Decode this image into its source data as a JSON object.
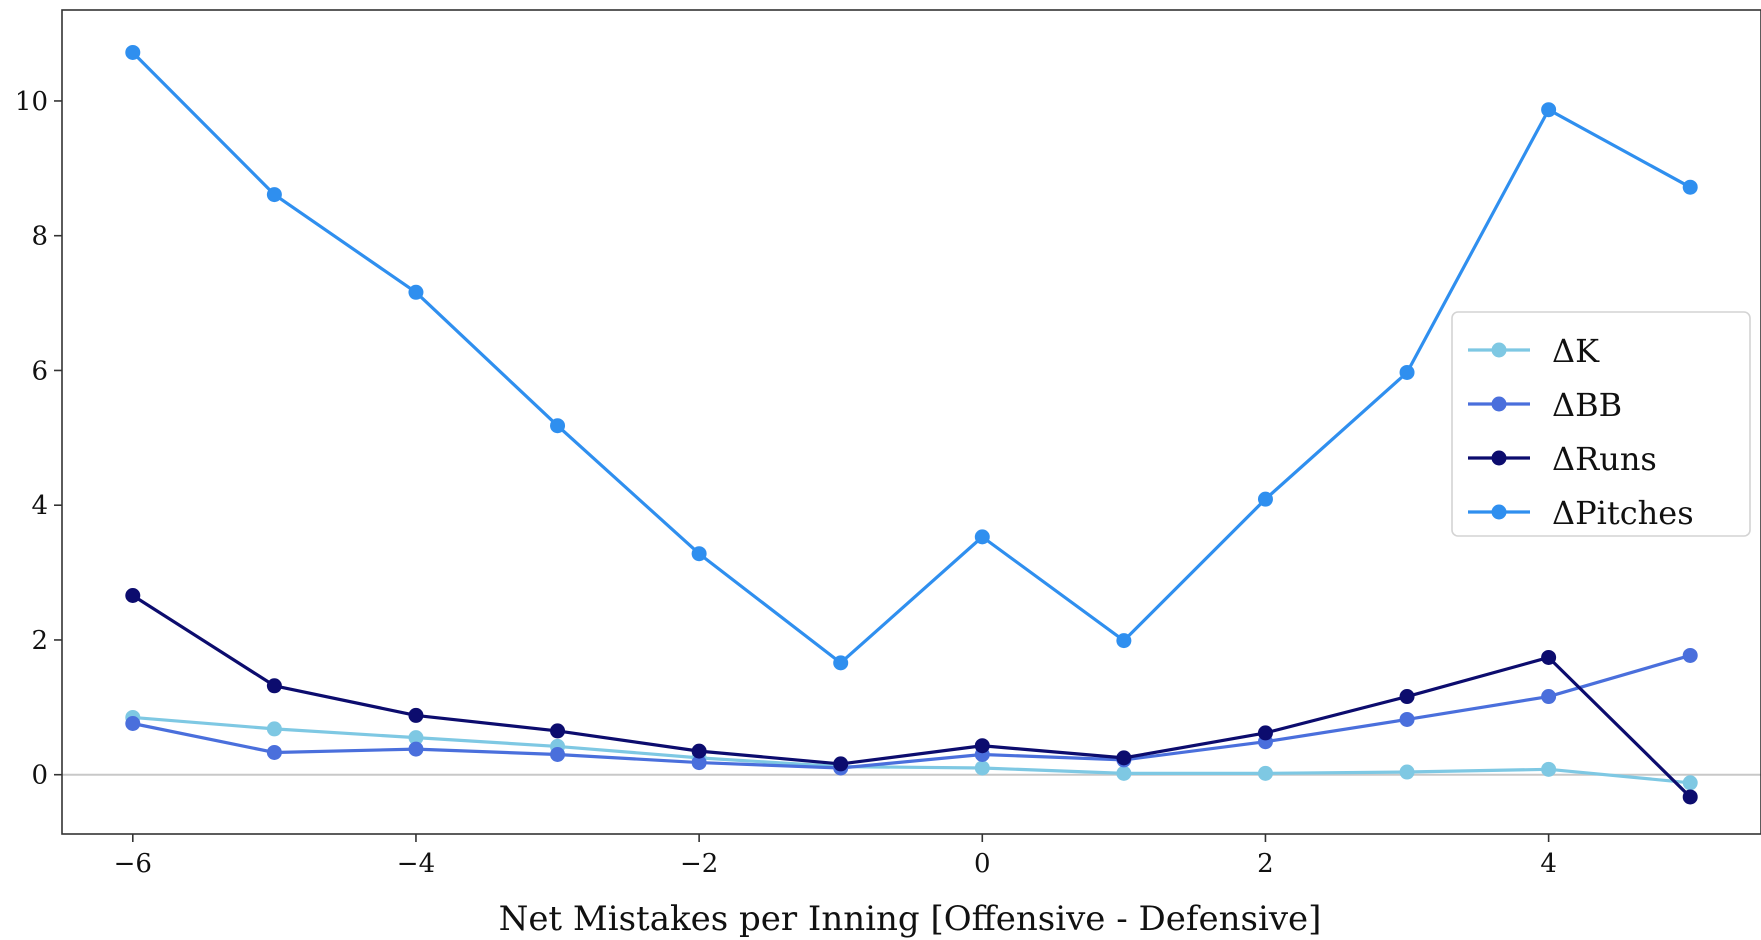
{
  "chart_data": {
    "type": "line",
    "title": "",
    "xlabel": "Net Mistakes per Inning [Offensive - Defensive]",
    "ylabel": "",
    "x": [
      -6,
      -5,
      -4,
      -3,
      -2,
      -1,
      0,
      1,
      2,
      3,
      4,
      5
    ],
    "xlim": [
      -6.5,
      5.5
    ],
    "ylim": [
      -0.88,
      11.35
    ],
    "xticks": [
      -6,
      -4,
      -2,
      0,
      2,
      4
    ],
    "xtick_labels": [
      "−6",
      "−4",
      "−2",
      "0",
      "2",
      "4"
    ],
    "yticks": [
      0,
      2,
      4,
      6,
      8,
      10
    ],
    "ytick_labels": [
      "0",
      "2",
      "4",
      "6",
      "8",
      "10"
    ],
    "reference_line_y": 0,
    "grid": false,
    "legend_position": "center-right",
    "series": [
      {
        "name": "ΔK",
        "color": "#7ec8e3",
        "values": [
          0.85,
          0.68,
          0.55,
          0.42,
          0.25,
          0.12,
          0.1,
          0.02,
          0.02,
          0.04,
          0.08,
          -0.12
        ]
      },
      {
        "name": "ΔBB",
        "color": "#4a6fdc",
        "values": [
          0.76,
          0.33,
          0.38,
          0.3,
          0.18,
          0.1,
          0.3,
          0.22,
          0.49,
          0.82,
          1.16,
          1.77
        ]
      },
      {
        "name": "ΔRuns",
        "color": "#0c0c6e",
        "values": [
          2.66,
          1.32,
          0.88,
          0.65,
          0.35,
          0.16,
          0.43,
          0.25,
          0.62,
          1.16,
          1.74,
          -0.33
        ]
      },
      {
        "name": "ΔPitches",
        "color": "#2f8fef",
        "values": [
          10.72,
          8.61,
          7.16,
          5.18,
          3.28,
          1.66,
          3.53,
          1.99,
          4.09,
          5.97,
          9.87,
          8.72
        ]
      }
    ]
  }
}
